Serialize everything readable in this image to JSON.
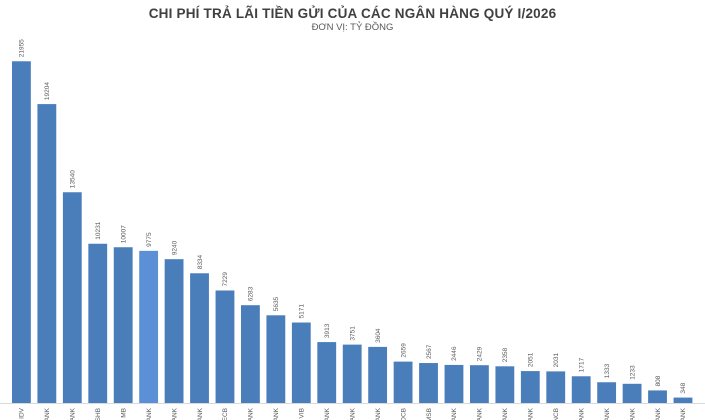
{
  "chart_data": {
    "type": "bar",
    "title": "CHI PHÍ TRẢ LÃI TIỀN GỬI CỦA CÁC NGÂN HÀNG QUÝ I/2026",
    "subtitle": "ĐƠN VỊ: TỶ ĐỒNG",
    "xlabel": "",
    "ylabel": "",
    "ylim": [
      0,
      23000
    ],
    "grid": false,
    "legend": "none",
    "categories": [
      "IDV",
      "ANK",
      "ANK",
      "SHB",
      "MB",
      "ANK",
      "ANK",
      "ANK",
      "ECB",
      "ANK",
      "ANK",
      "VIB",
      "ANK",
      "ANK",
      "ANK",
      "OCB",
      "MSB",
      "ANK",
      "ANK",
      "ANK",
      "ANK",
      "NCB",
      "ANK",
      "ANK",
      "ANK",
      "ANK",
      "ANK"
    ],
    "values": [
      21955,
      19204,
      13540,
      10231,
      10007,
      9775,
      9240,
      8334,
      7229,
      6283,
      5635,
      5171,
      3913,
      3751,
      3604,
      2659,
      2567,
      2446,
      2429,
      2358,
      2051,
      2031,
      1717,
      1333,
      1233,
      808,
      348
    ],
    "highlight_index": 5,
    "colors": {
      "bar": "#4a7ebb",
      "highlight": "#5b8fd6",
      "label": "#595959",
      "axis": "#d9d9d9"
    }
  }
}
